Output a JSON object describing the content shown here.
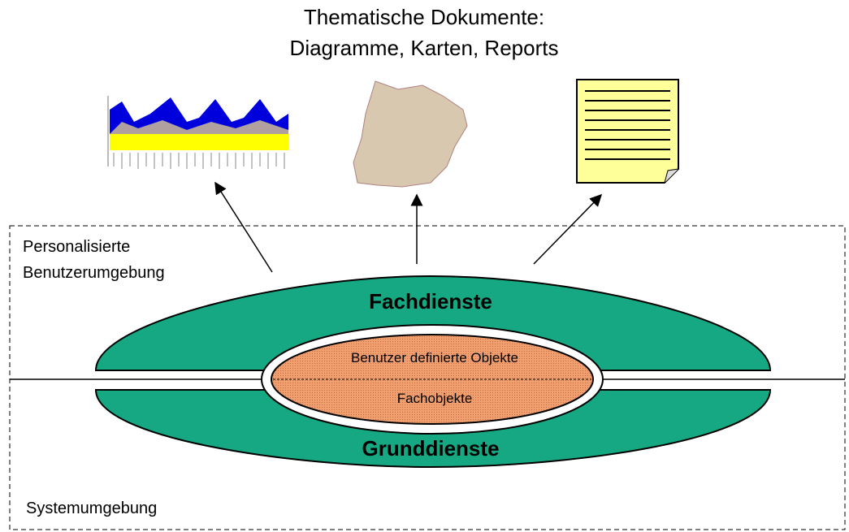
{
  "title": {
    "line1": "Thematische Dokumente:",
    "line2": "Diagramme, Karten, Reports"
  },
  "regions": {
    "personal": {
      "line1": "Personalisierte",
      "line2": "Benutzerumgebung"
    },
    "system": "Systemumgebung"
  },
  "services": {
    "upper": "Fachdienste",
    "lower": "Grunddienste"
  },
  "objects": {
    "upper": "Benutzer definierte Objekte",
    "lower": "Fachobjekte"
  }
}
